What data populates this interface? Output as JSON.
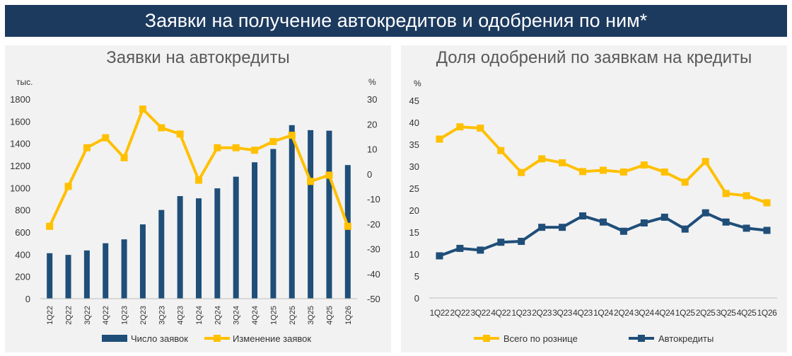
{
  "banner": {
    "title": "Заявки на получение автокредитов и одобрения по ним*"
  },
  "chart_data": [
    {
      "type": "bar+line",
      "title": "Заявки на автокредиты",
      "y_left_unit": "тыс.",
      "y_right_unit": "%",
      "ylim_left": [
        0,
        1800
      ],
      "ylim_right": [
        -50,
        30
      ],
      "yticks_left": [
        "0",
        "200",
        "400",
        "600",
        "800",
        "1000",
        "1200",
        "1400",
        "1600",
        "1800"
      ],
      "yticks_right": [
        "-50",
        "-40",
        "-30",
        "-20",
        "-10",
        "0",
        "10",
        "20",
        "30"
      ],
      "categories": [
        "1Q22",
        "2Q22",
        "3Q22",
        "4Q22",
        "1Q23",
        "2Q23",
        "3Q23",
        "4Q23",
        "1Q24",
        "2Q24",
        "3Q24",
        "4Q24",
        "1Q25",
        "2Q25",
        "3Q25",
        "4Q25",
        "1Q26"
      ],
      "series": [
        {
          "name": "Число заявок",
          "type": "bar",
          "axis": "left",
          "color": "#1f4e79",
          "values": [
            410,
            395,
            435,
            500,
            535,
            670,
            800,
            925,
            905,
            995,
            1100,
            1230,
            1350,
            1565,
            1520,
            1515,
            1205
          ]
        },
        {
          "name": "Изменение заявок",
          "type": "line",
          "axis": "right",
          "color": "#ffc000",
          "values": [
            -21,
            -5,
            10.5,
            14.5,
            6.5,
            26,
            18.5,
            16,
            -2.5,
            10.5,
            10.5,
            9.5,
            13,
            15.5,
            -3,
            -0.5,
            -21
          ]
        }
      ],
      "legend": "bottom"
    },
    {
      "type": "line",
      "title": "Доля одобрений по заявкам на кредиты",
      "y_unit": "%",
      "ylim": [
        0,
        45
      ],
      "yticks": [
        "0",
        "5",
        "10",
        "15",
        "20",
        "25",
        "30",
        "35",
        "40",
        "45"
      ],
      "categories": [
        "1Q22",
        "2Q22",
        "3Q22",
        "4Q22",
        "1Q23",
        "2Q23",
        "3Q23",
        "4Q23",
        "1Q24",
        "2Q24",
        "3Q24",
        "4Q24",
        "1Q25",
        "2Q25",
        "3Q25",
        "4Q25",
        "1Q26"
      ],
      "series": [
        {
          "name": "Всего по рознице",
          "color": "#ffc000",
          "values": [
            36.2,
            39,
            38.7,
            33.6,
            28.6,
            31.7,
            30.8,
            28.8,
            29.1,
            28.7,
            30.3,
            28.7,
            26.4,
            31.1,
            23.8,
            23.3,
            21.7
          ]
        },
        {
          "name": "Автокредиты",
          "color": "#1f4e79",
          "values": [
            9.6,
            11.3,
            10.9,
            12.7,
            12.9,
            16.1,
            16.1,
            18.7,
            17.3,
            15.2,
            17.1,
            18.4,
            15.7,
            19.4,
            17.3,
            15.9,
            15.4
          ]
        }
      ],
      "legend": "bottom"
    }
  ]
}
